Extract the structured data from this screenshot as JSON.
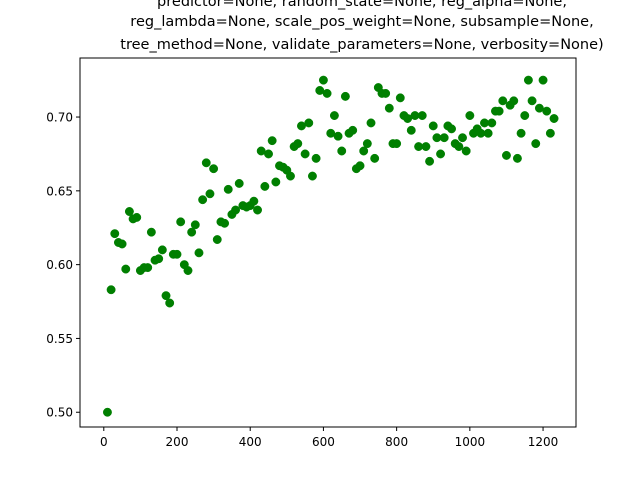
{
  "chart_data": {
    "type": "scatter",
    "title_lines": [
      "predictor=None, random_state=None, reg_alpha=None,",
      "reg_lambda=None, scale_pos_weight=None, subsample=None,",
      "tree_method=None, validate_parameters=None, verbosity=None)"
    ],
    "xlabel": "",
    "ylabel": "",
    "xlim": [
      -65,
      1290
    ],
    "ylim": [
      0.49,
      0.74
    ],
    "xticks": [
      0,
      200,
      400,
      600,
      800,
      1000,
      1200
    ],
    "yticks": [
      0.5,
      0.55,
      0.6,
      0.65,
      0.7
    ],
    "ytick_labels": [
      "0.50",
      "0.55",
      "0.60",
      "0.65",
      "0.70"
    ],
    "grid": false,
    "marker_color": "#007f00",
    "points": [
      [
        10,
        0.5
      ],
      [
        20,
        0.583
      ],
      [
        30,
        0.621
      ],
      [
        40,
        0.615
      ],
      [
        50,
        0.614
      ],
      [
        60,
        0.597
      ],
      [
        70,
        0.636
      ],
      [
        80,
        0.631
      ],
      [
        90,
        0.632
      ],
      [
        100,
        0.596
      ],
      [
        110,
        0.598
      ],
      [
        120,
        0.598
      ],
      [
        130,
        0.622
      ],
      [
        140,
        0.603
      ],
      [
        150,
        0.604
      ],
      [
        160,
        0.61
      ],
      [
        170,
        0.579
      ],
      [
        180,
        0.574
      ],
      [
        190,
        0.607
      ],
      [
        200,
        0.607
      ],
      [
        210,
        0.629
      ],
      [
        220,
        0.6
      ],
      [
        230,
        0.596
      ],
      [
        240,
        0.622
      ],
      [
        250,
        0.627
      ],
      [
        260,
        0.608
      ],
      [
        270,
        0.644
      ],
      [
        280,
        0.669
      ],
      [
        290,
        0.648
      ],
      [
        300,
        0.665
      ],
      [
        310,
        0.617
      ],
      [
        320,
        0.629
      ],
      [
        330,
        0.628
      ],
      [
        340,
        0.651
      ],
      [
        350,
        0.634
      ],
      [
        360,
        0.637
      ],
      [
        370,
        0.655
      ],
      [
        380,
        0.64
      ],
      [
        390,
        0.639
      ],
      [
        400,
        0.64
      ],
      [
        410,
        0.643
      ],
      [
        420,
        0.637
      ],
      [
        430,
        0.677
      ],
      [
        440,
        0.653
      ],
      [
        450,
        0.675
      ],
      [
        460,
        0.684
      ],
      [
        470,
        0.656
      ],
      [
        480,
        0.667
      ],
      [
        490,
        0.666
      ],
      [
        500,
        0.664
      ],
      [
        510,
        0.66
      ],
      [
        520,
        0.68
      ],
      [
        530,
        0.682
      ],
      [
        540,
        0.694
      ],
      [
        550,
        0.675
      ],
      [
        560,
        0.696
      ],
      [
        570,
        0.66
      ],
      [
        580,
        0.672
      ],
      [
        590,
        0.718
      ],
      [
        600,
        0.725
      ],
      [
        610,
        0.716
      ],
      [
        620,
        0.689
      ],
      [
        630,
        0.701
      ],
      [
        640,
        0.687
      ],
      [
        650,
        0.677
      ],
      [
        660,
        0.714
      ],
      [
        670,
        0.689
      ],
      [
        680,
        0.691
      ],
      [
        690,
        0.665
      ],
      [
        700,
        0.667
      ],
      [
        710,
        0.677
      ],
      [
        720,
        0.682
      ],
      [
        730,
        0.696
      ],
      [
        740,
        0.672
      ],
      [
        750,
        0.72
      ],
      [
        760,
        0.716
      ],
      [
        770,
        0.716
      ],
      [
        780,
        0.706
      ],
      [
        790,
        0.682
      ],
      [
        800,
        0.682
      ],
      [
        810,
        0.713
      ],
      [
        820,
        0.701
      ],
      [
        830,
        0.699
      ],
      [
        840,
        0.691
      ],
      [
        850,
        0.701
      ],
      [
        860,
        0.68
      ],
      [
        870,
        0.701
      ],
      [
        880,
        0.68
      ],
      [
        890,
        0.67
      ],
      [
        900,
        0.694
      ],
      [
        910,
        0.686
      ],
      [
        920,
        0.675
      ],
      [
        930,
        0.686
      ],
      [
        940,
        0.694
      ],
      [
        950,
        0.692
      ],
      [
        960,
        0.682
      ],
      [
        970,
        0.68
      ],
      [
        980,
        0.686
      ],
      [
        990,
        0.677
      ],
      [
        1000,
        0.701
      ],
      [
        1010,
        0.689
      ],
      [
        1020,
        0.692
      ],
      [
        1030,
        0.689
      ],
      [
        1040,
        0.696
      ],
      [
        1050,
        0.689
      ],
      [
        1060,
        0.696
      ],
      [
        1070,
        0.704
      ],
      [
        1080,
        0.704
      ],
      [
        1090,
        0.711
      ],
      [
        1100,
        0.674
      ],
      [
        1110,
        0.708
      ],
      [
        1120,
        0.711
      ],
      [
        1130,
        0.672
      ],
      [
        1140,
        0.689
      ],
      [
        1150,
        0.701
      ],
      [
        1160,
        0.725
      ],
      [
        1170,
        0.711
      ],
      [
        1180,
        0.682
      ],
      [
        1190,
        0.706
      ],
      [
        1200,
        0.725
      ],
      [
        1210,
        0.704
      ],
      [
        1220,
        0.689
      ],
      [
        1230,
        0.699
      ]
    ]
  }
}
